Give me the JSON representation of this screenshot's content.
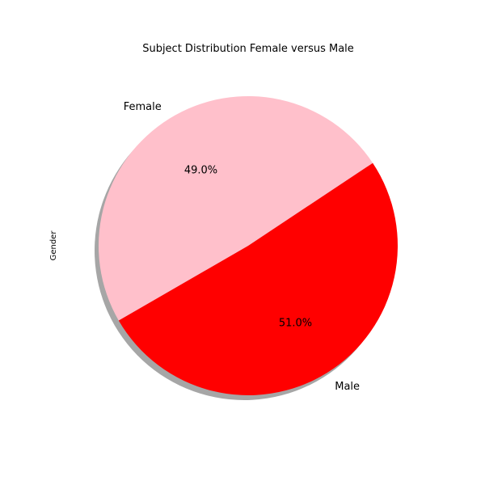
{
  "chart_data": {
    "type": "pie",
    "title": "Subject Distribution Female versus Male",
    "ylabel": "Gender",
    "slices": [
      {
        "label": "Male",
        "value": 51.0,
        "percent_label": "51.0%",
        "color": "#ff0000"
      },
      {
        "label": "Female",
        "value": 49.0,
        "percent_label": "49.0%",
        "color": "#ffc0cb"
      }
    ],
    "start_angle_deg": 210,
    "shadow": true
  }
}
